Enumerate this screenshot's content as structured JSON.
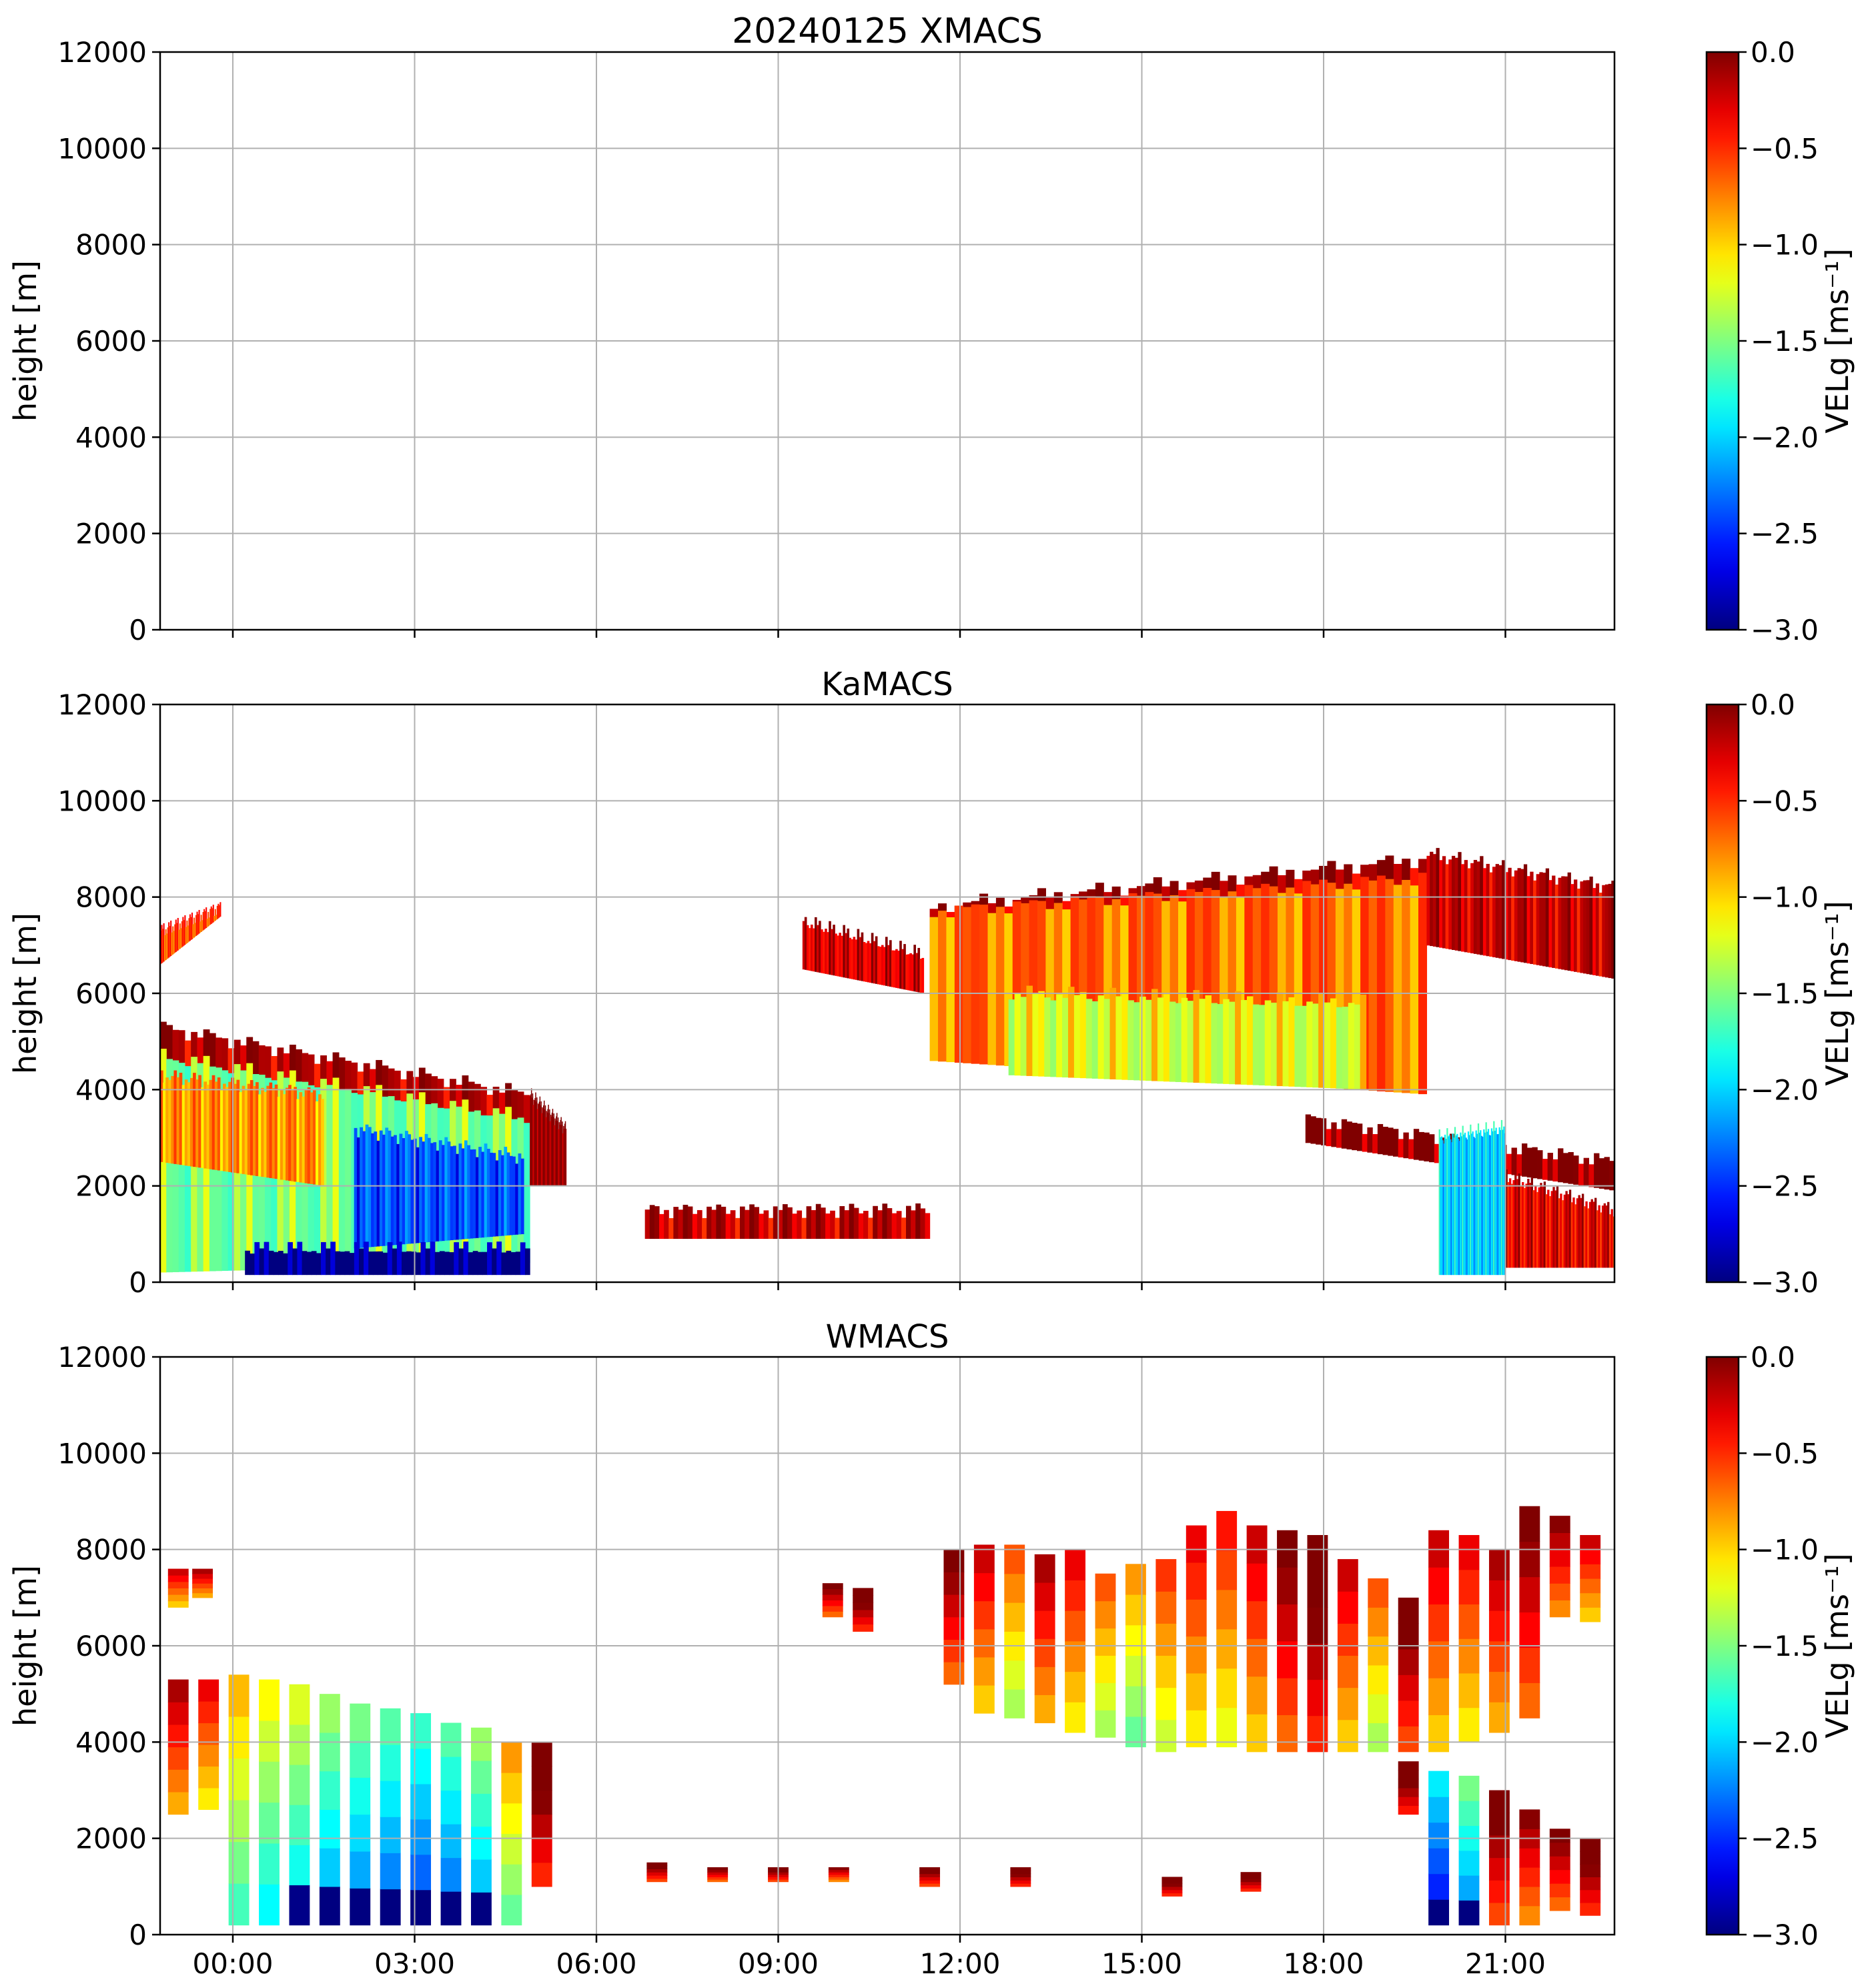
{
  "chart_data": [
    {
      "type": "heatmap",
      "title": "20240125 XMACS",
      "xlabel": "",
      "ylabel": "height [m]",
      "ylim": [
        0,
        12000
      ],
      "yticks": [
        "0",
        "2000",
        "4000",
        "6000",
        "8000",
        "10000",
        "12000"
      ],
      "xlim_hours": [
        -1.2,
        22.8
      ],
      "xtick_hours": [
        0,
        3,
        6,
        9,
        12,
        15,
        18,
        21
      ],
      "xticks": [
        "00:00",
        "03:00",
        "06:00",
        "09:00",
        "12:00",
        "15:00",
        "18:00",
        "21:00"
      ],
      "show_xtick_labels": false,
      "grid": true,
      "colorbar": {
        "label": "VELg [ms⁻¹]",
        "range": [
          -3.0,
          0.0
        ],
        "ticks": [
          "0.0",
          "−0.5",
          "−1.0",
          "−1.5",
          "−2.0",
          "−2.5",
          "−3.0"
        ],
        "tick_values": [
          0,
          -0.5,
          -1.0,
          -1.5,
          -2.0,
          -2.5,
          -3.0
        ],
        "colormap": "jet"
      },
      "regions": []
    },
    {
      "type": "heatmap",
      "title": "KaMACS",
      "xlabel": "",
      "ylabel": "height [m]",
      "ylim": [
        0,
        12000
      ],
      "yticks": [
        "0",
        "2000",
        "4000",
        "6000",
        "8000",
        "10000",
        "12000"
      ],
      "xlim_hours": [
        -1.2,
        22.8
      ],
      "xtick_hours": [
        0,
        3,
        6,
        9,
        12,
        15,
        18,
        21
      ],
      "xticks": [
        "00:00",
        "03:00",
        "06:00",
        "09:00",
        "12:00",
        "15:00",
        "18:00",
        "21:00"
      ],
      "show_xtick_labels": false,
      "grid": true,
      "colorbar": {
        "label": "VELg [ms⁻¹]",
        "range": [
          -3.0,
          0.0
        ],
        "ticks": [
          "0.0",
          "−0.5",
          "−1.0",
          "−1.5",
          "−2.0",
          "−2.5",
          "−3.0"
        ],
        "tick_values": [
          0,
          -0.5,
          -1.0,
          -1.5,
          -2.0,
          -2.5,
          -3.0
        ],
        "colormap": "jet"
      },
      "regions": [
        {
          "name": "early-upper-cloud",
          "t": [
            -1.2,
            -0.2
          ],
          "base": [
            6600,
            7600
          ],
          "top": [
            7300,
            7800
          ],
          "vel": -0.6
        },
        {
          "name": "early-main-cloud-top",
          "t": [
            -1.2,
            4.9
          ],
          "base": [
            4300,
            3100
          ],
          "top": [
            5300,
            3900
          ],
          "vel": -0.15
        },
        {
          "name": "early-main-cloud",
          "t": [
            -1.2,
            4.9
          ],
          "base": [
            200,
            400
          ],
          "top": [
            4700,
            3400
          ],
          "vel": -1.5
        },
        {
          "name": "early-cloud-orange-mix",
          "t": [
            -1.2,
            1.5
          ],
          "base": [
            2500,
            2000
          ],
          "top": [
            4300,
            3900
          ],
          "vel": -0.8
        },
        {
          "name": "early-deep-core",
          "t": [
            2.0,
            4.8
          ],
          "base": [
            700,
            1000
          ],
          "top": [
            3200,
            2600
          ],
          "vel": -2.4
        },
        {
          "name": "early-near-ground-fall",
          "t": [
            0.2,
            4.9
          ],
          "base": [
            150,
            150
          ],
          "top": [
            700,
            700
          ],
          "vel": -3.0
        },
        {
          "name": "early-tail",
          "t": [
            4.9,
            5.5
          ],
          "base": [
            2000,
            2000
          ],
          "top": [
            3900,
            3200
          ],
          "vel": -0.05
        },
        {
          "name": "midday-low-cloud",
          "t": [
            6.8,
            11.5
          ],
          "base": [
            900,
            900
          ],
          "top": [
            1500,
            1500
          ],
          "vel": -0.2
        },
        {
          "name": "mid-cloud-leading",
          "t": [
            9.4,
            11.4
          ],
          "base": [
            6500,
            6000
          ],
          "top": [
            7500,
            6800
          ],
          "vel": -0.25
        },
        {
          "name": "mid-cloud-top",
          "t": [
            11.5,
            19.7
          ],
          "base": [
            5900,
            6000
          ],
          "top": [
            7800,
            8800
          ],
          "vel": -0.1
        },
        {
          "name": "mid-cloud-body",
          "t": [
            11.5,
            19.7
          ],
          "base": [
            4600,
            3900
          ],
          "top": [
            7700,
            8400
          ],
          "vel": -0.7
        },
        {
          "name": "mid-cloud-core",
          "t": [
            12.8,
            18.7
          ],
          "base": [
            4300,
            4000
          ],
          "top": [
            6000,
            5800
          ],
          "vel": -1.2
        },
        {
          "name": "late-cloud",
          "t": [
            19.7,
            22.8
          ],
          "base": [
            7000,
            6300
          ],
          "top": [
            8900,
            8200
          ],
          "vel": -0.2
        },
        {
          "name": "late-lower-layer",
          "t": [
            17.7,
            22.8
          ],
          "base": [
            2900,
            1900
          ],
          "top": [
            3400,
            2500
          ],
          "vel": -0.05
        },
        {
          "name": "late-precip-column",
          "t": [
            19.9,
            21.0
          ],
          "base": [
            150,
            150
          ],
          "top": [
            3000,
            3200
          ],
          "vel": -2.0
        },
        {
          "name": "late-precip-tail",
          "t": [
            21.0,
            22.8
          ],
          "base": [
            300,
            300
          ],
          "top": [
            2200,
            1500
          ],
          "vel": -0.3
        }
      ]
    },
    {
      "type": "heatmap",
      "title": "WMACS",
      "xlabel": "",
      "ylabel": "height [m]",
      "ylim": [
        0,
        12000
      ],
      "yticks": [
        "0",
        "2000",
        "4000",
        "6000",
        "8000",
        "10000",
        "12000"
      ],
      "xlim_hours": [
        -1.2,
        22.8
      ],
      "xtick_hours": [
        0,
        3,
        6,
        9,
        12,
        15,
        18,
        21
      ],
      "xticks": [
        "00:00",
        "03:00",
        "06:00",
        "09:00",
        "12:00",
        "15:00",
        "18:00",
        "21:00"
      ],
      "show_xtick_labels": true,
      "grid": true,
      "colorbar": {
        "label": "VELg [ms⁻¹]",
        "range": [
          -3.0,
          0.0
        ],
        "ticks": [
          "0.0",
          "−0.5",
          "−1.0",
          "−1.5",
          "−2.0",
          "−2.5",
          "−3.0"
        ],
        "tick_values": [
          0,
          -0.5,
          -1.0,
          -1.5,
          -2.0,
          -2.5,
          -3.0
        ],
        "colormap": "jet"
      },
      "segments": [
        {
          "t": -0.9,
          "base": 6800,
          "top": 7600,
          "vel": -0.6
        },
        {
          "t": -0.5,
          "base": 7000,
          "top": 7600,
          "vel": -0.5
        },
        {
          "t": -0.9,
          "base": 2500,
          "top": 5300,
          "vel": -0.5
        },
        {
          "t": -0.4,
          "base": 2600,
          "top": 5300,
          "vel": -0.7
        },
        {
          "t": 0.1,
          "base": 200,
          "top": 5400,
          "vel": -1.3
        },
        {
          "t": 0.6,
          "base": 200,
          "top": 5300,
          "vel": -1.5
        },
        {
          "t": 1.1,
          "base": 200,
          "top": 5200,
          "vel": -1.6
        },
        {
          "t": 1.6,
          "base": 200,
          "top": 5000,
          "vel": -1.8
        },
        {
          "t": 2.1,
          "base": 200,
          "top": 4800,
          "vel": -1.9
        },
        {
          "t": 2.6,
          "base": 200,
          "top": 4700,
          "vel": -2.0
        },
        {
          "t": 3.1,
          "base": 200,
          "top": 4600,
          "vel": -2.1
        },
        {
          "t": 3.6,
          "base": 200,
          "top": 4400,
          "vel": -2.0
        },
        {
          "t": 4.1,
          "base": 200,
          "top": 4300,
          "vel": -1.8
        },
        {
          "t": 4.6,
          "base": 200,
          "top": 4000,
          "vel": -1.2
        },
        {
          "t": 5.1,
          "base": 1000,
          "top": 4000,
          "vel": -0.1
        },
        {
          "t": 9.9,
          "base": 6600,
          "top": 7300,
          "vel": -0.3
        },
        {
          "t": 10.4,
          "base": 6300,
          "top": 7200,
          "vel": -0.1
        },
        {
          "t": 11.9,
          "base": 5200,
          "top": 8000,
          "vel": -0.3
        },
        {
          "t": 12.4,
          "base": 4600,
          "top": 8100,
          "vel": -0.6
        },
        {
          "t": 12.9,
          "base": 4500,
          "top": 8100,
          "vel": -1.0
        },
        {
          "t": 13.4,
          "base": 4400,
          "top": 7900,
          "vel": -0.5
        },
        {
          "t": 13.9,
          "base": 4200,
          "top": 8000,
          "vel": -0.7
        },
        {
          "t": 14.4,
          "base": 4100,
          "top": 7500,
          "vel": -1.0
        },
        {
          "t": 14.9,
          "base": 3900,
          "top": 7700,
          "vel": -1.2
        },
        {
          "t": 15.4,
          "base": 3800,
          "top": 7800,
          "vel": -0.9
        },
        {
          "t": 15.9,
          "base": 3900,
          "top": 8500,
          "vel": -0.7
        },
        {
          "t": 16.4,
          "base": 3900,
          "top": 8800,
          "vel": -0.8
        },
        {
          "t": 16.9,
          "base": 3800,
          "top": 8500,
          "vel": -0.6
        },
        {
          "t": 17.4,
          "base": 3800,
          "top": 8400,
          "vel": -0.3
        },
        {
          "t": 17.9,
          "base": 3800,
          "top": 8300,
          "vel": -0.1
        },
        {
          "t": 18.4,
          "base": 3800,
          "top": 7800,
          "vel": -0.6
        },
        {
          "t": 18.9,
          "base": 3800,
          "top": 7400,
          "vel": -1.0
        },
        {
          "t": 19.4,
          "base": 3800,
          "top": 7000,
          "vel": -0.2
        },
        {
          "t": 19.9,
          "base": 3800,
          "top": 8400,
          "vel": -0.6
        },
        {
          "t": 20.4,
          "base": 4000,
          "top": 8300,
          "vel": -0.7
        },
        {
          "t": 20.9,
          "base": 4200,
          "top": 8000,
          "vel": -0.5
        },
        {
          "t": 21.4,
          "base": 4500,
          "top": 8900,
          "vel": -0.3
        },
        {
          "t": 21.9,
          "base": 6600,
          "top": 8700,
          "vel": -0.4
        },
        {
          "t": 22.4,
          "base": 6500,
          "top": 8300,
          "vel": -0.6
        },
        {
          "t": 19.4,
          "base": 2500,
          "top": 3600,
          "vel": -0.05
        },
        {
          "t": 19.9,
          "base": 200,
          "top": 3400,
          "vel": -2.3
        },
        {
          "t": 20.4,
          "base": 200,
          "top": 3300,
          "vel": -1.9
        },
        {
          "t": 20.9,
          "base": 200,
          "top": 3000,
          "vel": -0.2
        },
        {
          "t": 21.4,
          "base": 200,
          "top": 2600,
          "vel": -0.4
        },
        {
          "t": 21.9,
          "base": 500,
          "top": 2200,
          "vel": -0.3
        },
        {
          "t": 22.4,
          "base": 400,
          "top": 2000,
          "vel": -0.1
        },
        {
          "t": 7.0,
          "base": 1100,
          "top": 1500,
          "vel": -0.2
        },
        {
          "t": 8.0,
          "base": 1100,
          "top": 1400,
          "vel": -0.3
        },
        {
          "t": 9.0,
          "base": 1100,
          "top": 1400,
          "vel": -0.2
        },
        {
          "t": 10.0,
          "base": 1100,
          "top": 1400,
          "vel": -0.4
        },
        {
          "t": 11.5,
          "base": 1000,
          "top": 1400,
          "vel": -0.2
        },
        {
          "t": 13.0,
          "base": 1000,
          "top": 1400,
          "vel": -0.1
        },
        {
          "t": 15.5,
          "base": 800,
          "top": 1200,
          "vel": -0.1
        },
        {
          "t": 16.8,
          "base": 900,
          "top": 1300,
          "vel": -0.1
        }
      ]
    }
  ]
}
